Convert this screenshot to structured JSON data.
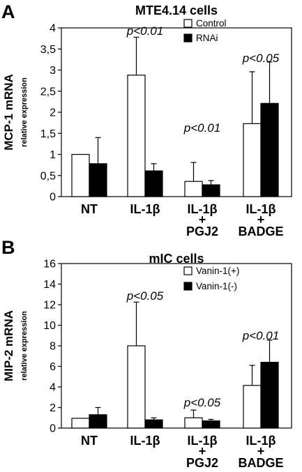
{
  "chart_data": [
    {
      "type": "bar",
      "panel_label": "A",
      "title": "MTE4.14 cells",
      "ylabel": "MCP-1 mRNA",
      "ylabel_sub": "relative expression",
      "ylim": [
        0,
        4
      ],
      "yticks": [
        "0",
        "0,5",
        "1",
        "1,5",
        "2",
        "2,5",
        "3",
        "3,5",
        "4"
      ],
      "categories": [
        [
          "NT"
        ],
        [
          "IL-1β"
        ],
        [
          "IL-1β",
          "+",
          "PGJ2"
        ],
        [
          "IL-1β",
          "+",
          "BADGE"
        ]
      ],
      "series": [
        {
          "name": "Control",
          "color": "#ffffff",
          "values": [
            1.0,
            2.88,
            0.36,
            1.73
          ],
          "errors": [
            0,
            0.9,
            0.45,
            1.23
          ]
        },
        {
          "name": "RNAi",
          "color": "#000000",
          "values": [
            0.78,
            0.61,
            0.28,
            2.21
          ],
          "errors": [
            0.62,
            0.17,
            0.1,
            0.98
          ]
        }
      ],
      "annotations": [
        {
          "text": "p<0.01",
          "category": 1
        },
        {
          "text": "p<0.01",
          "category": 2
        },
        {
          "text": "p<0.05",
          "category": 3
        }
      ],
      "legend": "top-right"
    },
    {
      "type": "bar",
      "panel_label": "B",
      "title": "mIC cells",
      "ylabel": "MIP-2 mRNA",
      "ylabel_sub": "relative expression",
      "ylim": [
        0,
        16
      ],
      "yticks": [
        "0",
        "2",
        "4",
        "6",
        "8",
        "10",
        "12",
        "14",
        "16"
      ],
      "categories": [
        [
          "NT"
        ],
        [
          "IL-1β"
        ],
        [
          "IL-1β",
          "+",
          "PGJ2"
        ],
        [
          "IL-1β",
          "+",
          "BADGE"
        ]
      ],
      "series": [
        {
          "name": "Vanin-1(+)",
          "color": "#ffffff",
          "values": [
            0.95,
            8.0,
            1.0,
            4.15
          ],
          "errors": [
            0,
            4.25,
            0.75,
            1.95
          ]
        },
        {
          "name": "Vanin-1(-)",
          "color": "#000000",
          "values": [
            1.3,
            0.8,
            0.7,
            6.4
          ],
          "errors": [
            0.7,
            0.2,
            0.15,
            2.15
          ]
        }
      ],
      "annotations": [
        {
          "text": "p<0.05",
          "category": 1
        },
        {
          "text": "p<0.05",
          "category": 2
        },
        {
          "text": "p<0.01",
          "category": 3
        }
      ],
      "legend": "top-right"
    }
  ]
}
